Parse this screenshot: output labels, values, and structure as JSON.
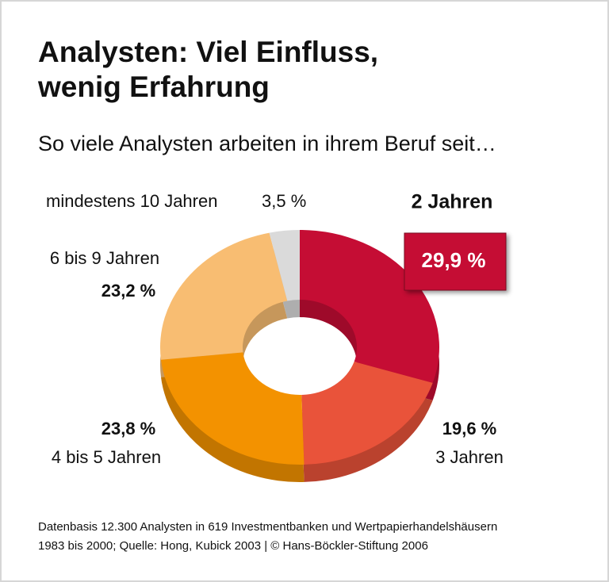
{
  "chart_data": {
    "type": "donut",
    "title": "Analysten: Viel Einfluss, wenig Erfahrung",
    "subtitle": "So viele Analysten arbeiten in ihrem Beruf seit…",
    "categories": [
      "2 Jahren",
      "3 Jahren",
      "4 bis 5 Jahren",
      "6 bis 9 Jahren",
      "mindestens 10 Jahren"
    ],
    "values": [
      29.9,
      19.6,
      23.8,
      23.2,
      3.5
    ],
    "value_labels": [
      "29,9 %",
      "19,6 %",
      "23,8 %",
      "23,2 %",
      "3,5 %"
    ],
    "colors": [
      "#c50d34",
      "#e9533a",
      "#f39200",
      "#f8bd72",
      "#dadada"
    ],
    "source": [
      "Datenbasis 12.300 Analysten in 619 Investmentbanken und Wertpapierhandelshäusern",
      "1983 bis 2000; Quelle: Hong, Kubick 2003 | © Hans-Böckler-Stiftung 2006"
    ]
  }
}
